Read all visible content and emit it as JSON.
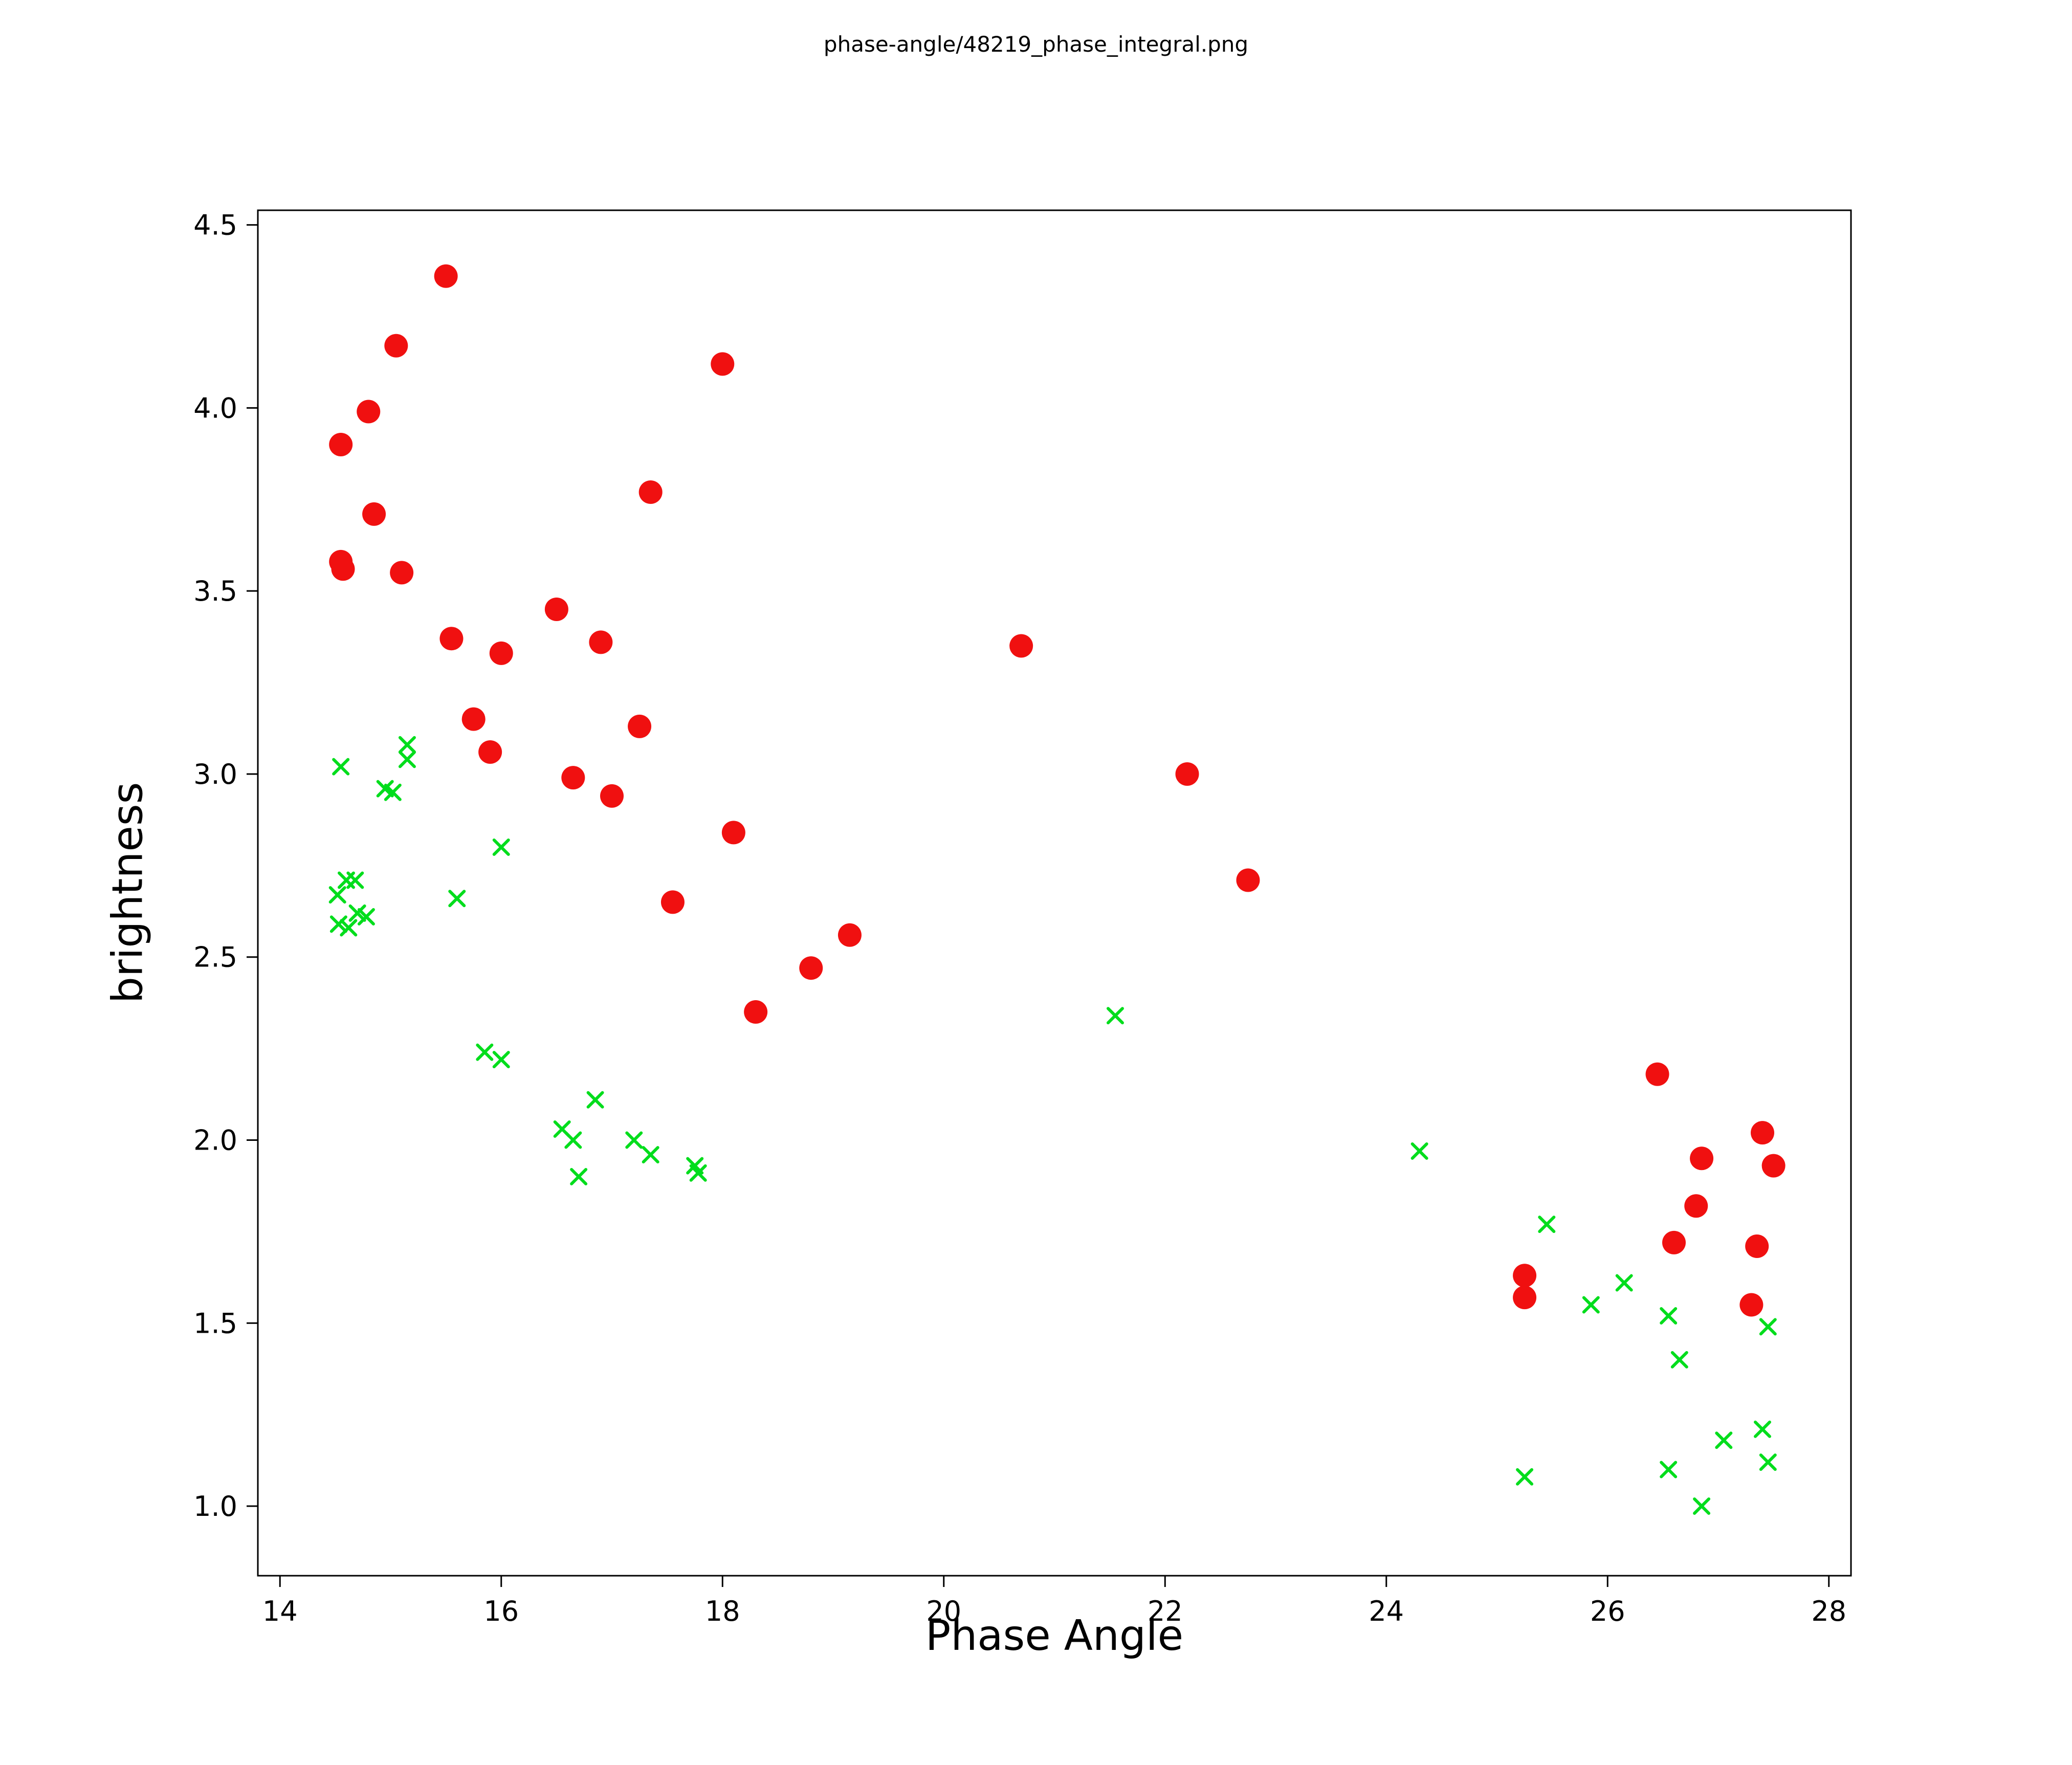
{
  "chart_data": {
    "type": "scatter",
    "title": "phase-angle/48219_phase_integral.png",
    "xlabel": "Phase Angle",
    "ylabel": "brightness",
    "xlim": [
      13.8,
      28.2
    ],
    "ylim": [
      0.81,
      4.54
    ],
    "xticks": [
      14,
      16,
      18,
      20,
      22,
      24,
      26,
      28
    ],
    "yticks": [
      1.0,
      1.5,
      2.0,
      2.5,
      3.0,
      3.5,
      4.0,
      4.5
    ],
    "grid": false,
    "legend": "none",
    "series": [
      {
        "name": "red-circles",
        "marker": "circle",
        "color": "#f01010",
        "points": [
          [
            14.55,
            3.9
          ],
          [
            14.8,
            3.99
          ],
          [
            15.05,
            4.17
          ],
          [
            15.5,
            4.36
          ],
          [
            18.0,
            4.12
          ],
          [
            17.35,
            3.77
          ],
          [
            14.85,
            3.71
          ],
          [
            14.55,
            3.58
          ],
          [
            14.57,
            3.56
          ],
          [
            15.1,
            3.55
          ],
          [
            16.5,
            3.45
          ],
          [
            15.55,
            3.37
          ],
          [
            16.9,
            3.36
          ],
          [
            16.0,
            3.33
          ],
          [
            20.7,
            3.35
          ],
          [
            15.75,
            3.15
          ],
          [
            17.25,
            3.13
          ],
          [
            15.9,
            3.06
          ],
          [
            22.2,
            3.0
          ],
          [
            16.65,
            2.99
          ],
          [
            17.0,
            2.94
          ],
          [
            18.1,
            2.84
          ],
          [
            22.75,
            2.71
          ],
          [
            17.55,
            2.65
          ],
          [
            19.15,
            2.56
          ],
          [
            18.8,
            2.47
          ],
          [
            18.3,
            2.35
          ],
          [
            26.45,
            2.18
          ],
          [
            27.4,
            2.02
          ],
          [
            26.85,
            1.95
          ],
          [
            27.5,
            1.93
          ],
          [
            26.8,
            1.82
          ],
          [
            26.6,
            1.72
          ],
          [
            27.35,
            1.71
          ],
          [
            25.25,
            1.63
          ],
          [
            25.25,
            1.57
          ],
          [
            27.3,
            1.55
          ]
        ]
      },
      {
        "name": "green-crosses",
        "marker": "x",
        "color": "#00dd1c",
        "points": [
          [
            14.55,
            3.02
          ],
          [
            15.15,
            3.08
          ],
          [
            15.15,
            3.04
          ],
          [
            14.95,
            2.96
          ],
          [
            15.02,
            2.95
          ],
          [
            16.0,
            2.8
          ],
          [
            14.6,
            2.71
          ],
          [
            14.68,
            2.71
          ],
          [
            14.52,
            2.67
          ],
          [
            15.6,
            2.66
          ],
          [
            14.7,
            2.62
          ],
          [
            14.78,
            2.61
          ],
          [
            14.53,
            2.59
          ],
          [
            14.62,
            2.58
          ],
          [
            21.55,
            2.34
          ],
          [
            15.85,
            2.24
          ],
          [
            16.0,
            2.22
          ],
          [
            16.85,
            2.11
          ],
          [
            16.55,
            2.03
          ],
          [
            16.65,
            2.0
          ],
          [
            17.2,
            2.0
          ],
          [
            17.35,
            1.96
          ],
          [
            24.3,
            1.97
          ],
          [
            17.75,
            1.93
          ],
          [
            17.78,
            1.91
          ],
          [
            16.7,
            1.9
          ],
          [
            25.45,
            1.77
          ],
          [
            26.15,
            1.61
          ],
          [
            25.85,
            1.55
          ],
          [
            26.55,
            1.52
          ],
          [
            27.45,
            1.49
          ],
          [
            26.65,
            1.4
          ],
          [
            27.4,
            1.21
          ],
          [
            27.05,
            1.18
          ],
          [
            27.45,
            1.12
          ],
          [
            26.55,
            1.1
          ],
          [
            25.25,
            1.08
          ],
          [
            26.85,
            1.0
          ]
        ]
      }
    ]
  }
}
